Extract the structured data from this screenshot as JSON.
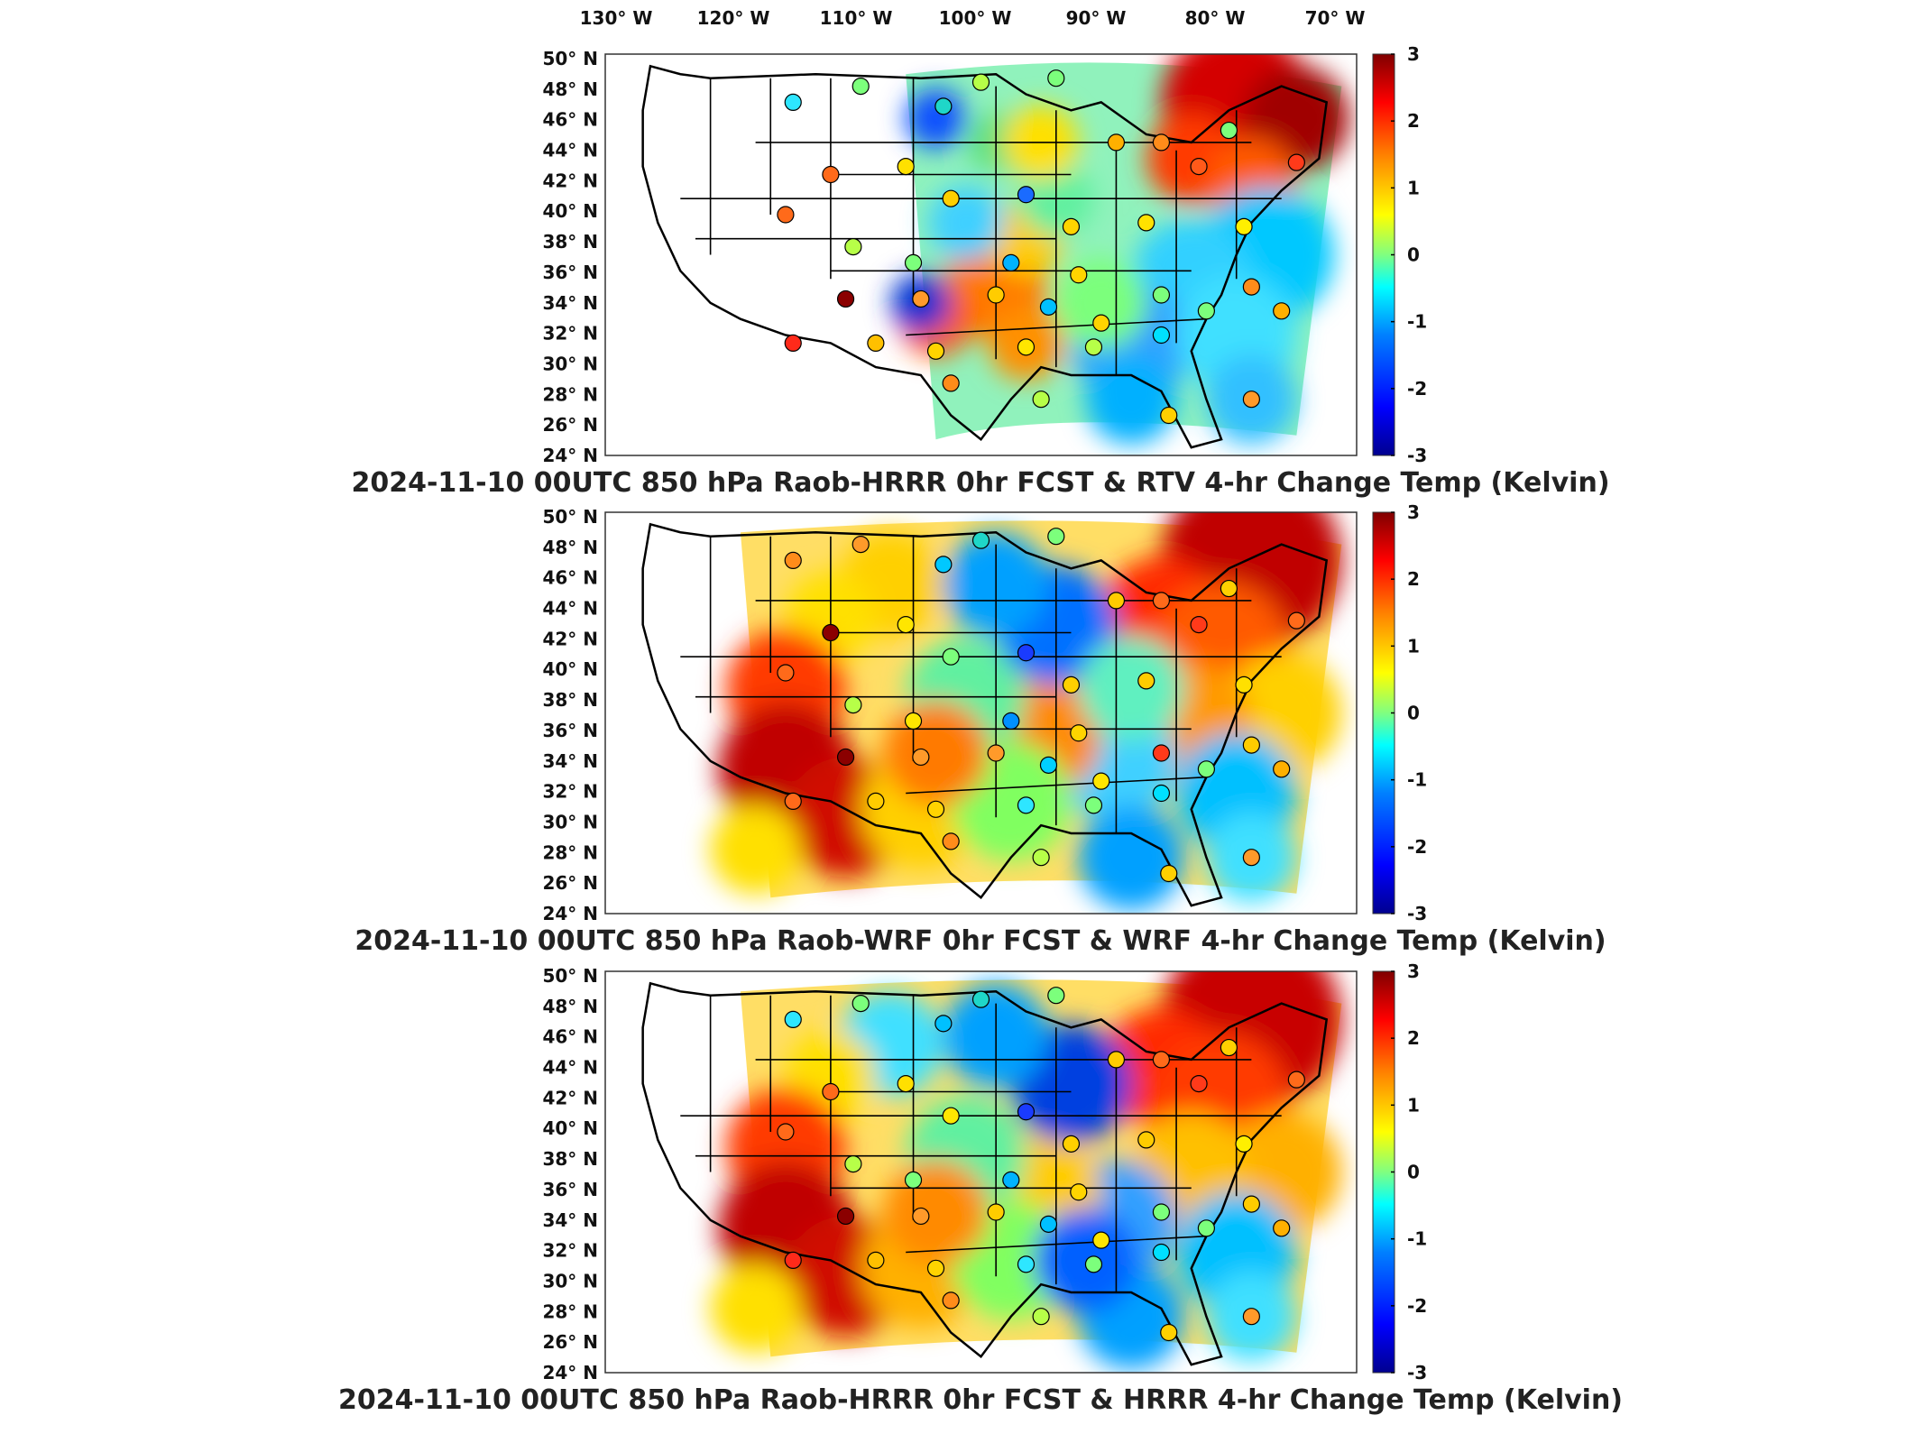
{
  "figure": {
    "lon_labels": [
      "130° W",
      "120° W",
      "110° W",
      "100° W",
      "90° W",
      "80° W",
      "70° W"
    ],
    "lat_labels": [
      "50° N",
      "48° N",
      "46° N",
      "44° N",
      "42° N",
      "40° N",
      "38° N",
      "36° N",
      "34° N",
      "32° N",
      "30° N",
      "28° N",
      "26° N",
      "24° N"
    ],
    "colorbar": {
      "ticks": [
        "3",
        "2",
        "1",
        "0",
        "-1",
        "-2",
        "-3"
      ],
      "min": -3,
      "max": 3,
      "colormap": [
        "#00008f",
        "#0000ff",
        "#0080ff",
        "#00ffff",
        "#80ff80",
        "#ffff00",
        "#ff8000",
        "#ff0000",
        "#800000"
      ]
    },
    "panels": [
      {
        "title": "2024-11-10 00UTC 850 hPa Raob-HRRR 0hr FCST & RTV 4-hr Change Temp (Kelvin)"
      },
      {
        "title": "2024-11-10 00UTC 850 hPa Raob-WRF 0hr FCST & WRF 4-hr Change Temp (Kelvin)"
      },
      {
        "title": "2024-11-10 00UTC 850 hPa Raob-HRRR 0hr FCST & HRRR 4-hr Change Temp (Kelvin)"
      }
    ]
  }
}
